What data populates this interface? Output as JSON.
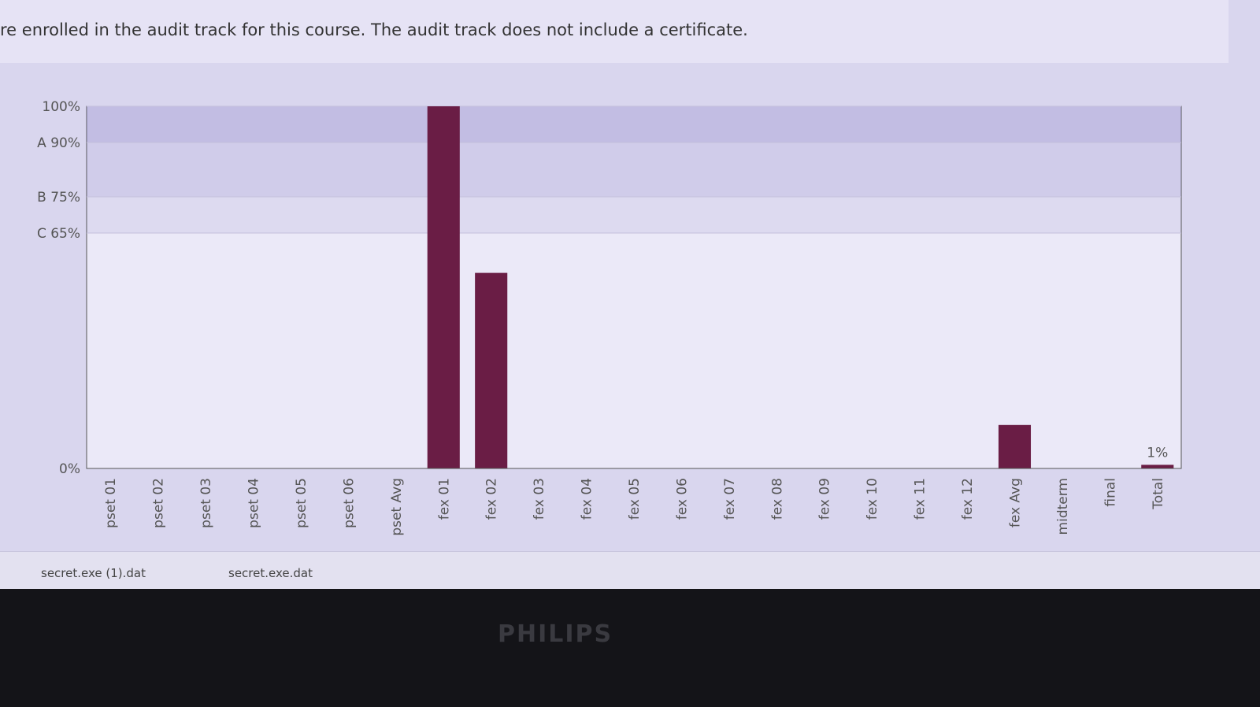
{
  "notice": "re enrolled in the audit track for this course. The audit track does not include a certificate.",
  "chart_data": {
    "type": "bar",
    "categories": [
      "pset 01",
      "pset 02",
      "pset 03",
      "pset 04",
      "pset 05",
      "pset 06",
      "pset Avg",
      "fex 01",
      "fex 02",
      "fex 03",
      "fex 04",
      "fex 05",
      "fex 06",
      "fex 07",
      "fex 08",
      "fex 09",
      "fex 10",
      "fex 11",
      "fex 12",
      "fex Avg",
      "midterm",
      "final",
      "Total"
    ],
    "values": [
      0,
      0,
      0,
      0,
      0,
      0,
      0,
      100,
      54,
      0,
      0,
      0,
      0,
      0,
      0,
      0,
      0,
      0,
      0,
      12,
      0,
      0,
      1
    ],
    "value_labels": [
      null,
      null,
      null,
      null,
      null,
      null,
      null,
      null,
      null,
      null,
      null,
      null,
      null,
      null,
      null,
      null,
      null,
      null,
      null,
      null,
      null,
      null,
      "1%"
    ],
    "color": "#6a1d45",
    "ylim": [
      0,
      100
    ],
    "yticks": [
      {
        "value": 0,
        "label": "0%"
      },
      {
        "value": 65,
        "label": "C 65%"
      },
      {
        "value": 75,
        "label": "B 75%"
      },
      {
        "value": 90,
        "label": "A 90%"
      },
      {
        "value": 100,
        "label": "100%"
      }
    ]
  },
  "downloads": [
    "secret.exe (1).dat",
    "secret.exe.dat"
  ],
  "brand": "PHILIPS"
}
